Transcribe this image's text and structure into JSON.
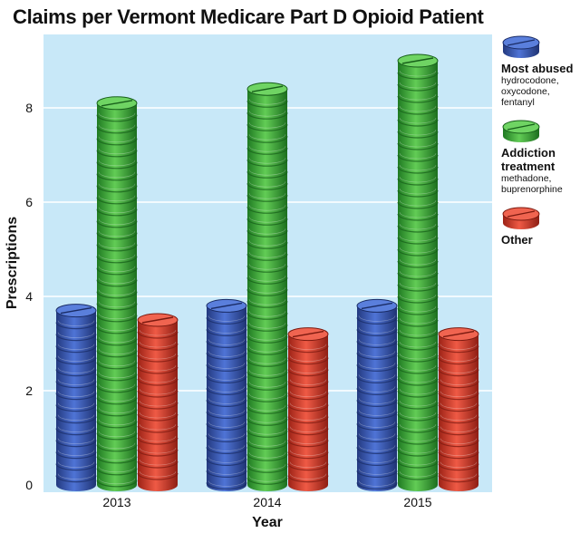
{
  "title": "Claims per Vermont Medicare Part D Opioid Patient",
  "chart_data": {
    "type": "bar",
    "title": "Claims per Vermont Medicare Part D Opioid Patient",
    "xlabel": "Year",
    "ylabel": "Prescriptions",
    "categories": [
      "2013",
      "2014",
      "2015"
    ],
    "series": [
      {
        "name": "Most abused",
        "values": [
          3.7,
          3.8,
          3.8
        ]
      },
      {
        "name": "Addiction treatment",
        "values": [
          8.1,
          8.4,
          9.0
        ]
      },
      {
        "name": "Other",
        "values": [
          3.5,
          3.2,
          3.2
        ]
      }
    ],
    "ylim": [
      0,
      9.5
    ],
    "yticks": [
      0,
      2,
      4,
      6,
      8
    ],
    "grid": true,
    "legend_position": "right"
  },
  "legend": [
    {
      "title": "Most abused",
      "desc": [
        "hydrocodone,",
        "oxycodone,",
        "fentanyl"
      ],
      "color": "#3a5bb8",
      "icon": "blue-pill-icon"
    },
    {
      "title": "Addiction treatment",
      "desc": [
        "methadone,",
        "buprenorphine"
      ],
      "color": "#3fae3f",
      "icon": "green-pill-icon"
    },
    {
      "title": "Other",
      "desc": [],
      "color": "#d83a2a",
      "icon": "red-pill-icon"
    }
  ],
  "colors": {
    "plot_background": "#c8e8f8",
    "blue": "#3a5bb8",
    "green": "#3fae3f",
    "red": "#d83a2a"
  }
}
